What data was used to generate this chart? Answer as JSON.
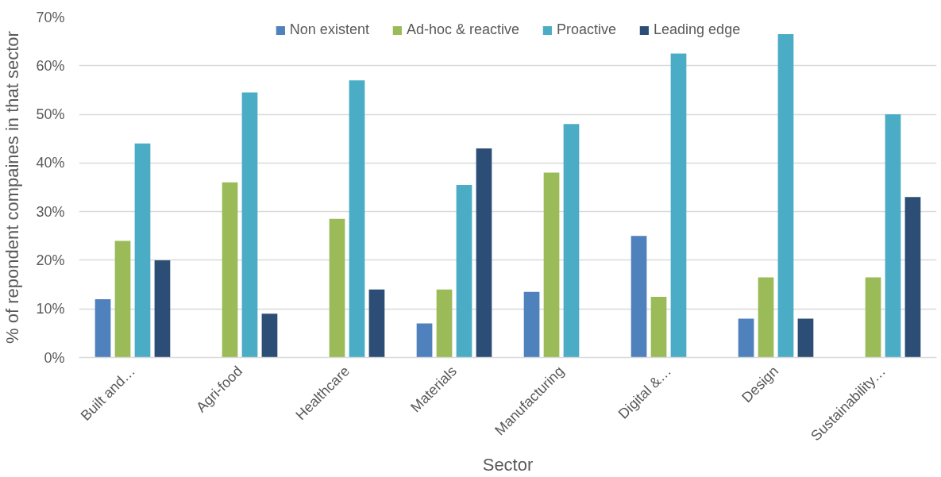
{
  "chart_data": {
    "type": "bar",
    "xlabel": "Sector",
    "ylabel": "% of repondent compaines in that sector",
    "categories": [
      "Built and…",
      "Agri-food",
      "Healthcare",
      "Materials",
      "Manufacturing",
      "Digital &…",
      "Design",
      "Sustainability…"
    ],
    "series": [
      {
        "name": "Non existent",
        "color": "#4f81bd",
        "values": [
          12,
          null,
          null,
          7,
          13.5,
          25,
          8,
          null
        ]
      },
      {
        "name": "Ad-hoc & reactive",
        "color": "#9bbb59",
        "values": [
          24,
          36,
          28.5,
          14,
          38,
          12.5,
          16.5,
          16.5
        ]
      },
      {
        "name": "Proactive",
        "color": "#4bacc6",
        "values": [
          44,
          54.5,
          57,
          35.5,
          48,
          62.5,
          66.5,
          50
        ]
      },
      {
        "name": "Leading edge",
        "color": "#2c4d75",
        "values": [
          20,
          9,
          14,
          43,
          null,
          null,
          8,
          33
        ]
      }
    ],
    "ylim": [
      0,
      70
    ],
    "yticks": [
      {
        "value": 0,
        "label": "0%"
      },
      {
        "value": 10,
        "label": "10%"
      },
      {
        "value": 20,
        "label": "20%"
      },
      {
        "value": 30,
        "label": "30%"
      },
      {
        "value": 40,
        "label": "40%"
      },
      {
        "value": 50,
        "label": "50%"
      },
      {
        "value": 60,
        "label": "60%"
      },
      {
        "value": 70,
        "label": "70%"
      }
    ],
    "grid": "y",
    "legend": "top"
  }
}
